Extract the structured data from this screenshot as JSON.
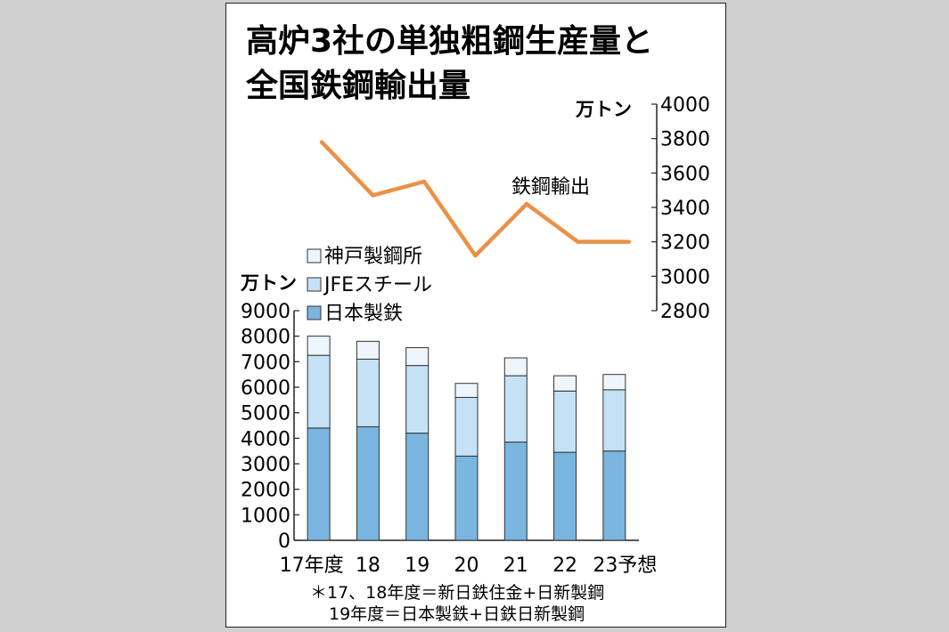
{
  "title_line1": "高炉3社の単独粗鋼生産量と",
  "title_line2": "全国鉄鋼輸出量",
  "notes": [
    "＊17、18年度＝新日鉄住金+日新製鋼",
    "19年度＝日本製鉄+日鉄日新製鋼"
  ],
  "colors": {
    "nippon": "#7ab6df",
    "jfe": "#c5e1f5",
    "kobe": "#eef5fc",
    "export_line": "#eb9147"
  },
  "chart_data": [
    {
      "type": "bar",
      "stacked": true,
      "unit": "万トン",
      "categories": [
        "17年度",
        "18",
        "19",
        "20",
        "21",
        "22",
        "23予想"
      ],
      "series": [
        {
          "name": "日本製鉄",
          "values": [
            4400,
            4450,
            4200,
            3300,
            3850,
            3450,
            3500
          ]
        },
        {
          "name": "JFEスチール",
          "values": [
            2850,
            2650,
            2650,
            2300,
            2600,
            2400,
            2400
          ]
        },
        {
          "name": "神戸製鋼所",
          "values": [
            750,
            700,
            700,
            550,
            700,
            600,
            600
          ]
        }
      ],
      "ylim": [
        0,
        9000
      ],
      "yticks": [
        0,
        1000,
        2000,
        3000,
        4000,
        5000,
        6000,
        7000,
        8000,
        9000
      ],
      "legend_position": "top-left"
    },
    {
      "type": "line",
      "unit": "万トン",
      "categories": [
        "17年度",
        "18",
        "19",
        "20",
        "21",
        "22",
        "23予想"
      ],
      "series": [
        {
          "name": "鉄鋼輸出",
          "values": [
            3780,
            3470,
            3550,
            3120,
            3420,
            3200,
            3200
          ]
        }
      ],
      "ylim": [
        2800,
        4000
      ],
      "yticks": [
        2800,
        3000,
        3200,
        3400,
        3600,
        3800,
        4000
      ],
      "axis_side": "right"
    }
  ]
}
